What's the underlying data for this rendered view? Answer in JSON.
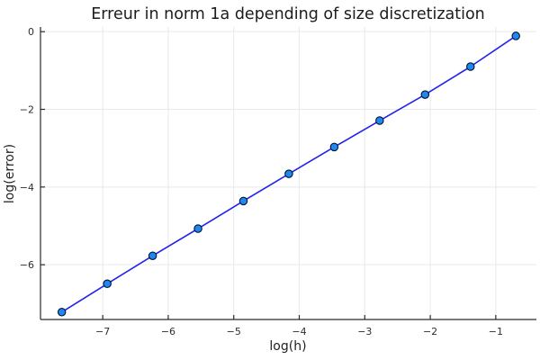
{
  "chart_data": {
    "type": "line",
    "title": "Erreur in norm 1a depending of size discretization",
    "xlabel": "log(h)",
    "ylabel": "log(error)",
    "x": [
      -7.625,
      -6.931,
      -6.238,
      -5.545,
      -4.852,
      -4.159,
      -3.466,
      -2.773,
      -2.079,
      -1.386,
      -0.693
    ],
    "y": [
      -7.22,
      -6.49,
      -5.77,
      -5.07,
      -4.36,
      -3.66,
      -2.97,
      -2.29,
      -1.62,
      -0.9,
      -0.11
    ],
    "xticks": [
      -7,
      -6,
      -5,
      -4,
      -3,
      -2,
      -1
    ],
    "yticks": [
      0,
      -2,
      -4,
      -6
    ],
    "xlim": [
      -7.95,
      -0.38
    ],
    "ylim": [
      -7.41,
      0.12
    ],
    "grid": true,
    "legend": false,
    "marker": "circle",
    "colors": {
      "line": "#2222ee",
      "marker_fill": "#1e88ee",
      "marker_edge": "#001133",
      "grid": "#e9e9e9",
      "axis": "#2a2a2a",
      "text": "#1c1c1c",
      "background": "#ffffff"
    }
  }
}
